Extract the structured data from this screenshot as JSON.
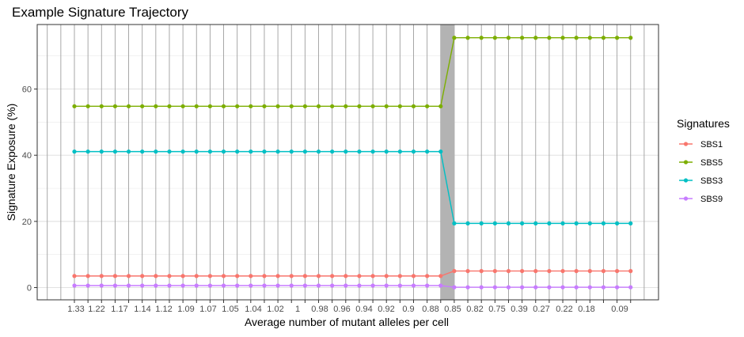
{
  "chart_data": {
    "type": "line",
    "title": "Example Signature Trajectory",
    "xlabel": "Average number of mutant alleles per cell",
    "ylabel": "Signature Exposure (%)",
    "ylim": [
      -3.7,
      79.5
    ],
    "yticks": [
      0,
      20,
      40,
      60
    ],
    "x_label_values": [
      "1.33",
      "1.22",
      "1.17",
      "1.14",
      "1.12",
      "1.09",
      "1.07",
      "1.05",
      "1.04",
      "1.02",
      "1",
      "0.98",
      "0.96",
      "0.94",
      "0.92",
      "0.9",
      "0.88",
      "0.85",
      "0.82",
      "0.75",
      "0.39",
      "0.27",
      "0.22",
      "0.18",
      "0.09"
    ],
    "n_points": 42,
    "highlight_between_points": [
      27,
      28
    ],
    "grid": true,
    "legend_position": "right",
    "legend_title": "Signatures",
    "series": [
      {
        "name": "SBS1",
        "color": "#F8766D",
        "values": [
          3.5,
          3.5,
          3.5,
          3.5,
          3.5,
          3.5,
          3.5,
          3.5,
          3.5,
          3.5,
          3.5,
          3.5,
          3.5,
          3.5,
          3.5,
          3.5,
          3.5,
          3.5,
          3.5,
          3.5,
          3.5,
          3.5,
          3.5,
          3.5,
          3.5,
          3.5,
          3.5,
          3.5,
          5,
          5,
          5,
          5,
          5,
          5,
          5,
          5,
          5,
          5,
          5,
          5,
          5,
          5
        ]
      },
      {
        "name": "SBS5",
        "color": "#7CAE00",
        "values": [
          54.8,
          54.8,
          54.8,
          54.8,
          54.8,
          54.8,
          54.8,
          54.8,
          54.8,
          54.8,
          54.8,
          54.8,
          54.8,
          54.8,
          54.8,
          54.8,
          54.8,
          54.8,
          54.8,
          54.8,
          54.8,
          54.8,
          54.8,
          54.8,
          54.8,
          54.8,
          54.8,
          54.8,
          75.5,
          75.5,
          75.5,
          75.5,
          75.5,
          75.5,
          75.5,
          75.5,
          75.5,
          75.5,
          75.5,
          75.5,
          75.5,
          75.5
        ]
      },
      {
        "name": "SBS3",
        "color": "#00BFC4",
        "values": [
          41.1,
          41.1,
          41.1,
          41.1,
          41.1,
          41.1,
          41.1,
          41.1,
          41.1,
          41.1,
          41.1,
          41.1,
          41.1,
          41.1,
          41.1,
          41.1,
          41.1,
          41.1,
          41.1,
          41.1,
          41.1,
          41.1,
          41.1,
          41.1,
          41.1,
          41.1,
          41.1,
          41.1,
          19.4,
          19.4,
          19.4,
          19.4,
          19.4,
          19.4,
          19.4,
          19.4,
          19.4,
          19.4,
          19.4,
          19.4,
          19.4,
          19.4
        ]
      },
      {
        "name": "SBS9",
        "color": "#C77CFF",
        "values": [
          0.6,
          0.6,
          0.6,
          0.6,
          0.6,
          0.6,
          0.6,
          0.6,
          0.6,
          0.6,
          0.6,
          0.6,
          0.6,
          0.6,
          0.6,
          0.6,
          0.6,
          0.6,
          0.6,
          0.6,
          0.6,
          0.6,
          0.6,
          0.6,
          0.6,
          0.6,
          0.6,
          0.6,
          0.1,
          0.1,
          0.1,
          0.1,
          0.1,
          0.1,
          0.1,
          0.1,
          0.1,
          0.1,
          0.1,
          0.1,
          0.1,
          0.1
        ]
      }
    ]
  }
}
